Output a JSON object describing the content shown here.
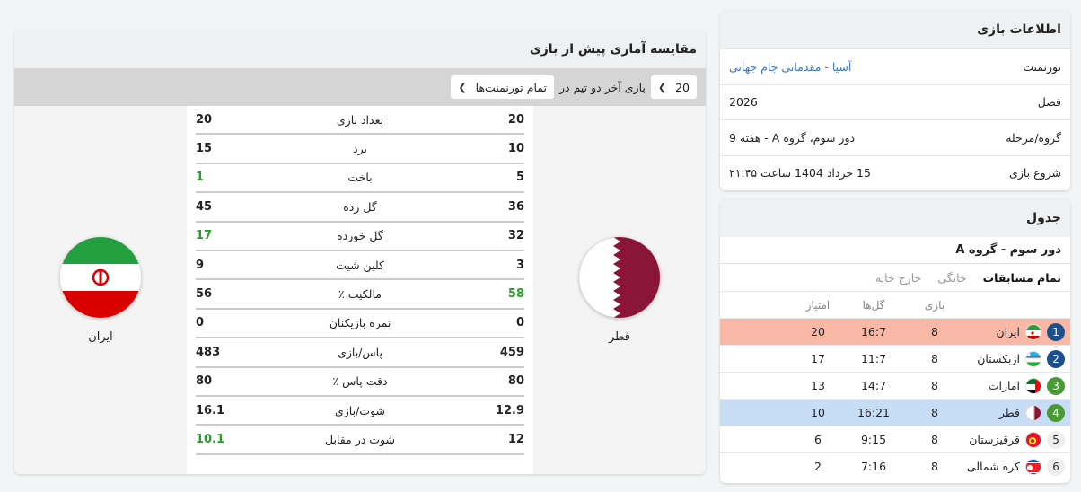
{
  "info": {
    "title": "اطلاعات بازی",
    "rows": [
      {
        "label": "تورنمنت",
        "value": "آسیا - مقدماتی جام جهانی"
      },
      {
        "label": "فصل",
        "value": "2026"
      },
      {
        "label": "گروه/مرحله",
        "value": "دور سوم، گروه A - هفته 9"
      },
      {
        "label": "شروع بازی",
        "value": "15 خرداد 1404 ساعت ۲۱:۴۵"
      }
    ]
  },
  "table": {
    "title": "جدول",
    "stage": "دور سوم - گروه A",
    "tabs": [
      "تمام مسابقات",
      "خانگی",
      "خارج خانه"
    ],
    "headers": {
      "played": "بازی",
      "goals": "گل‌ها",
      "points": "امتیاز"
    },
    "rows": [
      {
        "rank": "1",
        "team": "ایران",
        "played": "8",
        "goals": "16:7",
        "points": "20",
        "flag": "iran"
      },
      {
        "rank": "2",
        "team": "ازبکستان",
        "played": "8",
        "goals": "11:7",
        "points": "17",
        "flag": "uzbekistan"
      },
      {
        "rank": "3",
        "team": "امارات",
        "played": "8",
        "goals": "14:7",
        "points": "13",
        "flag": "uae"
      },
      {
        "rank": "4",
        "team": "قطر",
        "played": "8",
        "goals": "16:21",
        "points": "10",
        "flag": "qatar"
      },
      {
        "rank": "5",
        "team": "قرقیزستان",
        "played": "8",
        "goals": "9:15",
        "points": "6",
        "flag": "kyrgyzstan"
      },
      {
        "rank": "6",
        "team": "کره شمالی",
        "played": "8",
        "goals": "7:16",
        "points": "2",
        "flag": "north-korea"
      }
    ]
  },
  "compare": {
    "title": "مقایسه آماری پیش از بازی",
    "filter": {
      "count": "20",
      "label": "بازی آخر دو تیم در",
      "tournament": "تمام تورنمنت‌ها"
    },
    "home_team": "قطر",
    "away_team": "ایران",
    "stats": [
      {
        "label": "تعداد بازی",
        "home": "20",
        "away": "20"
      },
      {
        "label": "برد",
        "home": "10",
        "away": "15"
      },
      {
        "label": "باخت",
        "home": "5",
        "away": "1"
      },
      {
        "label": "گل زده",
        "home": "36",
        "away": "45"
      },
      {
        "label": "گل خورده",
        "home": "32",
        "away": "17"
      },
      {
        "label": "کلین شیت",
        "home": "3",
        "away": "9"
      },
      {
        "label": "مالکیت ٪",
        "home": "58",
        "away": "56"
      },
      {
        "label": "نمره بازیکنان",
        "home": "0",
        "away": "0"
      },
      {
        "label": "پاس/بازی",
        "home": "459",
        "away": "483"
      },
      {
        "label": "دقت پاس ٪",
        "home": "80",
        "away": "80"
      },
      {
        "label": "شوت/بازی",
        "home": "12.9",
        "away": "16.1"
      },
      {
        "label": "شوت در مقابل",
        "home": "12",
        "away": "10.1"
      }
    ]
  },
  "colors": {
    "rank1_bg": "#f9b8a6",
    "rank4_bg": "#c7dcf5",
    "rank_blue": "#1d4f8c",
    "rank_green": "#4a9a36",
    "better_value": "#2a9d2a",
    "link": "#3a78c4"
  }
}
